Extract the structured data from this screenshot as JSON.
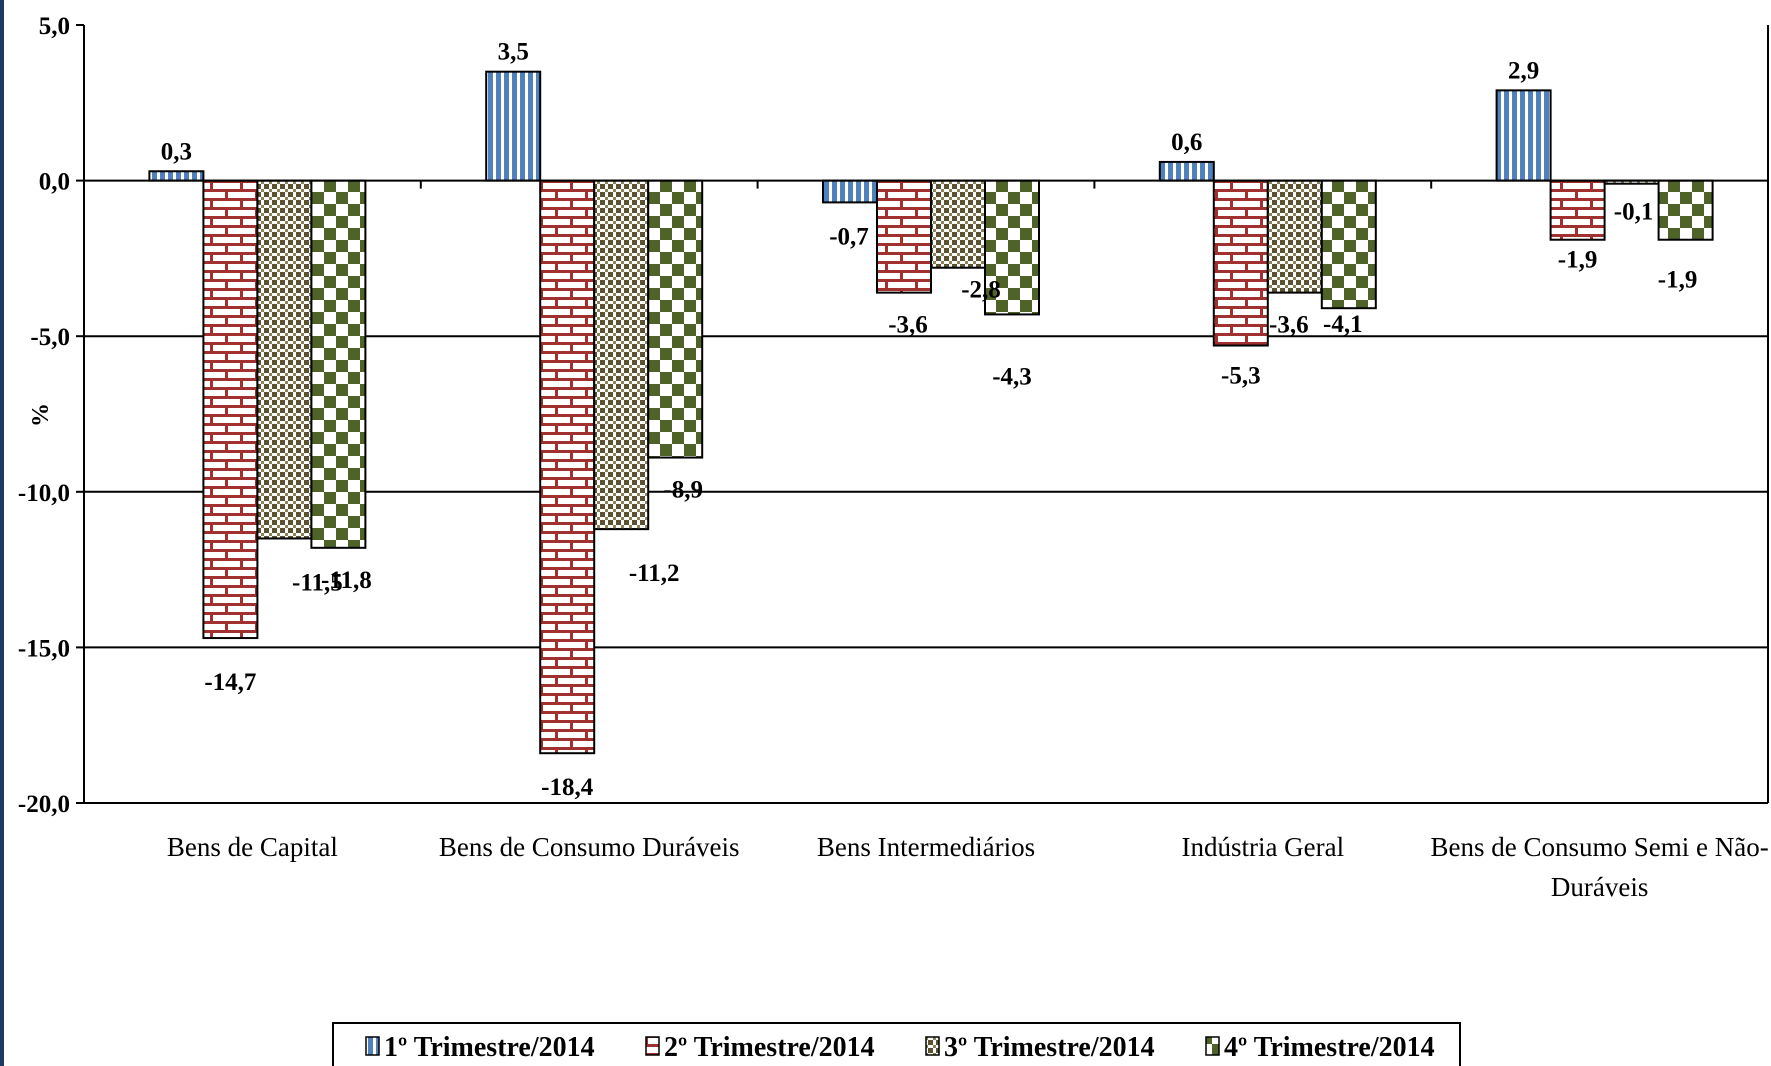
{
  "chart_data": {
    "type": "bar",
    "title": "",
    "xlabel": "",
    "ylabel": "%",
    "ylim": [
      -20,
      5
    ],
    "yticks": [
      "5,0",
      "0,0",
      "-5,0",
      "-10,0",
      "-15,0",
      "-20,0"
    ],
    "ytick_values": [
      5,
      0,
      -5,
      -10,
      -15,
      -20
    ],
    "grid": "horizontal lines at -5, -10, -15",
    "legend_position": "bottom",
    "categories": [
      "Bens de Capital",
      "Bens de Consumo Duráveis",
      "Bens Intermediários",
      "Indústria Geral",
      "Bens de Consumo Semi e Não-Duráveis"
    ],
    "category_lines": [
      [
        "Bens de Capital"
      ],
      [
        "Bens de Consumo Duráveis"
      ],
      [
        "Bens Intermediários"
      ],
      [
        "Indústria Geral"
      ],
      [
        "Bens de Consumo Semi e Não-",
        "Duráveis"
      ]
    ],
    "series": [
      {
        "name": "1º Trimestre/2014",
        "values": [
          0.3,
          3.5,
          -0.7,
          0.6,
          2.9
        ],
        "labels": [
          "0,3",
          "3,5",
          "-0,7",
          "0,6",
          "2,9"
        ],
        "color": "#4f81bd",
        "pattern": "vertical-stripes"
      },
      {
        "name": "2º Trimestre/2014",
        "values": [
          -14.7,
          -18.4,
          -3.6,
          -5.3,
          -1.9
        ],
        "labels": [
          "-14,7",
          "-18,4",
          "-3,6",
          "-5,3",
          "-1,9"
        ],
        "color": "#a0312f",
        "pattern": "bricks"
      },
      {
        "name": "3º Trimestre/2014",
        "values": [
          -11.5,
          -11.2,
          -2.8,
          -3.6,
          -0.1
        ],
        "labels": [
          "-11,5",
          "-11,2",
          "-2,8",
          "-3,6",
          "-0,1"
        ],
        "color": "#5a5230",
        "pattern": "small-checker"
      },
      {
        "name": "4º Trimestre/2014",
        "values": [
          -11.8,
          -8.9,
          -4.3,
          -4.1,
          -1.9
        ],
        "labels": [
          "-11,8",
          "-8,9",
          "-4,3",
          "-4,1",
          "-1,9"
        ],
        "color": "#4f6228",
        "pattern": "large-checker"
      }
    ]
  }
}
